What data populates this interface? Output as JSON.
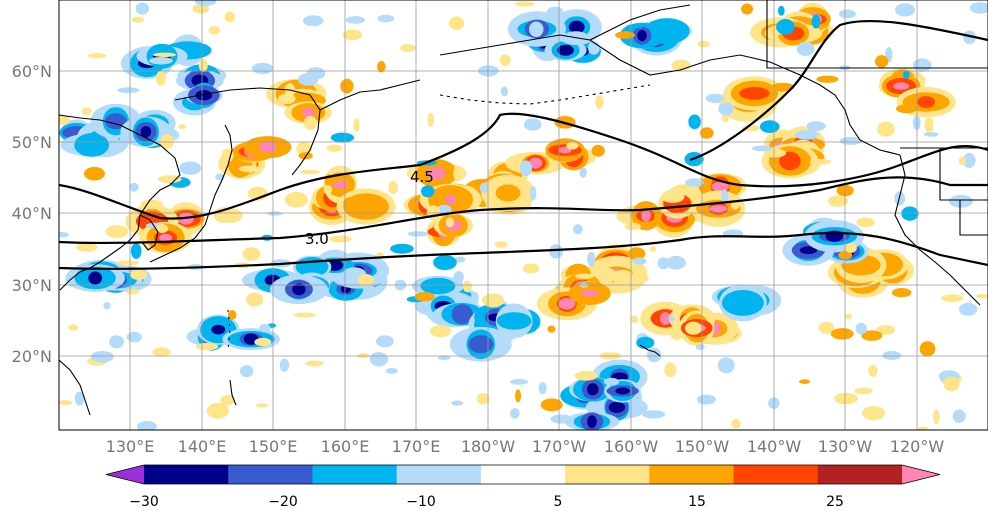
{
  "map": {
    "latitude_labels": [
      "60°N",
      "50°N",
      "40°N",
      "30°N",
      "20°N"
    ],
    "longitude_labels": [
      "130°E",
      "140°E",
      "150°E",
      "160°E",
      "170°E",
      "180°W",
      "170°W",
      "160°W",
      "150°W",
      "140°W",
      "130°W",
      "120°W"
    ],
    "contour_labels": [
      "4.5",
      "3.0"
    ],
    "colorbar": {
      "colors": [
        "#9b30d9",
        "#00008b",
        "#3a5bd0",
        "#00b4f0",
        "#b4dcfa",
        "#ffffff",
        "#ffe58a",
        "#ffa500",
        "#ff4500",
        "#b22222",
        "#ff85b3"
      ],
      "tick_labels": [
        "−30",
        "−20",
        "−10",
        "5",
        "15",
        "25"
      ]
    },
    "colors": {
      "contour_line": "#000000",
      "coastline": "#000000",
      "gridline": "#999999"
    }
  }
}
